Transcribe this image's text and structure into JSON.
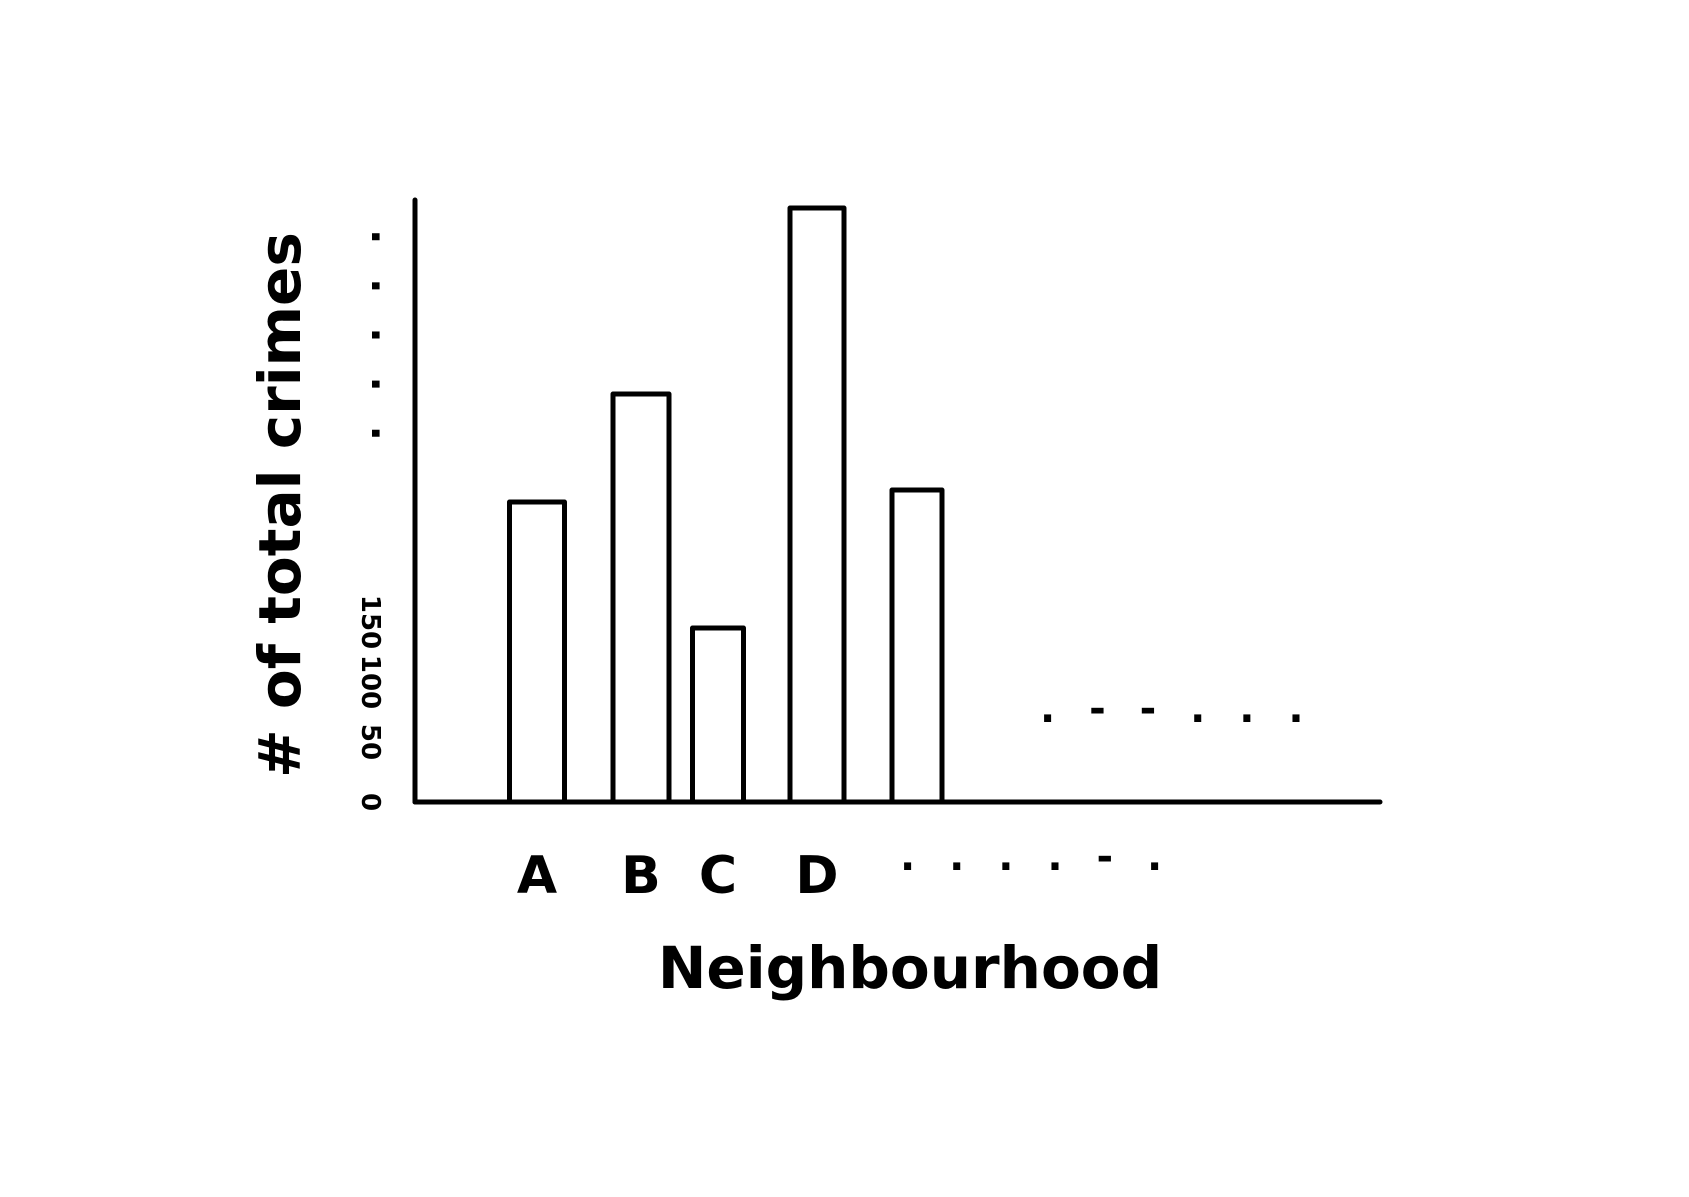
{
  "chart_data": {
    "type": "bar",
    "xlabel": "Neighbourhood",
    "ylabel": "# of total crimes",
    "categories": [
      "A",
      "B",
      "C",
      "D",
      ""
    ],
    "values": [
      250,
      340,
      145,
      495,
      260
    ],
    "x_continuation": ". . . . - .",
    "y_ticks": [
      {
        "value": 0,
        "label": "0"
      },
      {
        "value": 50,
        "label": "50"
      },
      {
        "value": 100,
        "label": "100"
      },
      {
        "value": 150,
        "label": "150"
      }
    ],
    "y_continuation": ". . . . .",
    "data_continuation": ". - - . . .",
    "ylim": [
      0,
      600
    ],
    "grid": false,
    "legend": "none"
  }
}
